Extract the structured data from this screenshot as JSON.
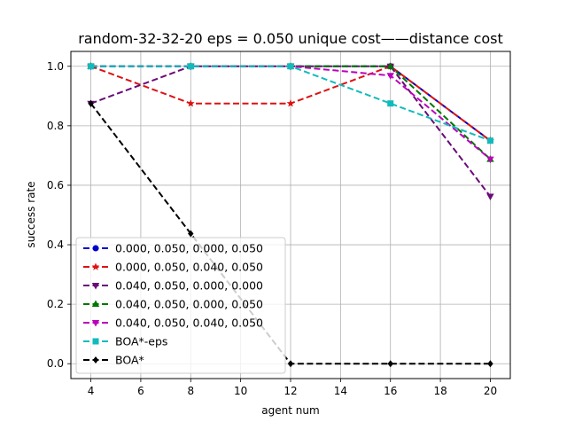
{
  "chart_data": {
    "type": "line",
    "title": "random-32-32-20    eps = 0.050    unique cost——distance cost",
    "xlabel": "agent num",
    "ylabel": "success rate",
    "xlim": [
      3.2,
      20.8
    ],
    "ylim": [
      -0.05,
      1.05
    ],
    "xticks": [
      4,
      6,
      8,
      10,
      12,
      14,
      16,
      18,
      20
    ],
    "xtick_labels": [
      "4",
      "6",
      "8",
      "10",
      "12",
      "14",
      "16",
      "18",
      "20"
    ],
    "yticks": [
      0.0,
      0.2,
      0.4,
      0.6,
      0.8,
      1.0
    ],
    "ytick_labels": [
      "0.0",
      "0.2",
      "0.4",
      "0.6",
      "0.8",
      "1.0"
    ],
    "grid": true,
    "legend_position": "lower-left",
    "x": [
      4,
      8,
      12,
      16,
      20
    ],
    "series": [
      {
        "name": "0.000, 0.050, 0.000, 0.050",
        "color": "#0000cc",
        "marker": "circle",
        "values": [
          1.0,
          1.0,
          1.0,
          1.0,
          0.75
        ]
      },
      {
        "name": "0.000, 0.050, 0.040, 0.050",
        "color": "#dd1111",
        "marker": "star",
        "values": [
          1.0,
          0.875,
          0.875,
          1.0,
          0.75
        ]
      },
      {
        "name": "0.040, 0.050, 0.000, 0.000",
        "color": "#6a0a78",
        "marker": "triangle-down",
        "values": [
          0.875,
          1.0,
          1.0,
          1.0,
          0.5625
        ]
      },
      {
        "name": "0.040, 0.050, 0.000, 0.050",
        "color": "#007700",
        "marker": "triangle-up",
        "values": [
          1.0,
          1.0,
          1.0,
          1.0,
          0.6875
        ]
      },
      {
        "name": "0.040, 0.050, 0.040, 0.050",
        "color": "#bb00bb",
        "marker": "triangle-down",
        "values": [
          1.0,
          1.0,
          1.0,
          0.96875,
          0.6875
        ]
      },
      {
        "name": "BOA*-eps",
        "color": "#11bbbb",
        "marker": "square",
        "values": [
          1.0,
          1.0,
          1.0,
          0.875,
          0.75
        ]
      },
      {
        "name": "BOA*",
        "color": "#000000",
        "marker": "diamond",
        "values": [
          0.875,
          0.4375,
          0.0,
          0.0,
          0.0
        ]
      }
    ]
  }
}
